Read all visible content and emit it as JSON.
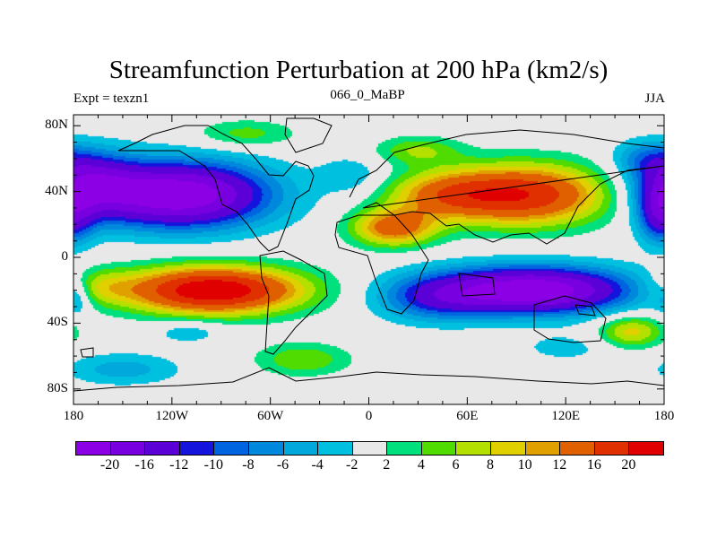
{
  "title": "Streamfunction Perturbation at 200 hPa (km2/s)",
  "left_string": "Expt = texzn1",
  "center_string": "066_0_MaBP",
  "right_string": "JJA",
  "chart_data": {
    "type": "heatmap",
    "subtype": "filled-contour-map",
    "title": "Streamfunction Perturbation at 200 hPa (km2/s)",
    "x_ticks": [
      "180",
      "120W",
      "60W",
      "0",
      "60E",
      "120E",
      "180"
    ],
    "x_tick_values": [
      -180,
      -120,
      -60,
      0,
      60,
      120,
      180
    ],
    "y_ticks": [
      "80N",
      "40N",
      "0",
      "40S",
      "80S"
    ],
    "y_tick_values": [
      80,
      40,
      0,
      -40,
      -80
    ],
    "xlim": [
      -180,
      180
    ],
    "ylim": [
      -90,
      87
    ],
    "levels": [
      -20,
      -16,
      -12,
      -10,
      -8,
      -6,
      -4,
      -2,
      2,
      4,
      6,
      8,
      10,
      12,
      16,
      20
    ],
    "level_labels": [
      "-20",
      "-16",
      "-12",
      "-10",
      "-8",
      "-6",
      "-4",
      "-2",
      "2",
      "4",
      "6",
      "8",
      "10",
      "12",
      "16",
      "20"
    ],
    "colors": [
      "#8c00e6",
      "#7800e0",
      "#5c00d8",
      "#1414dc",
      "#0064e0",
      "#0088dc",
      "#00a8dc",
      "#00c0e0",
      "#e8e8e8",
      "#00e07c",
      "#50dc00",
      "#b4e000",
      "#e0d000",
      "#e0a000",
      "#e06000",
      "#e03000",
      "#e00000"
    ],
    "anomaly_centers": [
      {
        "lon": -115,
        "lat": 38,
        "value": -24,
        "slon": 38,
        "slat": 14
      },
      {
        "lon": -170,
        "lat": 45,
        "value": -14,
        "slon": 20,
        "slat": 13
      },
      {
        "lon": 178,
        "lat": 25,
        "value": -12,
        "slon": 10,
        "slat": 12
      },
      {
        "lon": 170,
        "lat": 60,
        "value": -6,
        "slon": 15,
        "slat": 8
      },
      {
        "lon": -10,
        "lat": 50,
        "value": -4,
        "slon": 14,
        "slat": 8
      },
      {
        "lon": -75,
        "lat": 75,
        "value": 5,
        "slon": 22,
        "slat": 6
      },
      {
        "lon": 95,
        "lat": 38,
        "value": 19,
        "slon": 35,
        "slat": 13
      },
      {
        "lon": 45,
        "lat": 38,
        "value": 10,
        "slon": 25,
        "slat": 10
      },
      {
        "lon": 15,
        "lat": 18,
        "value": 14,
        "slon": 18,
        "slat": 8
      },
      {
        "lon": 30,
        "lat": 65,
        "value": 6,
        "slon": 18,
        "slat": 6
      },
      {
        "lon": -95,
        "lat": -20,
        "value": 24,
        "slon": 38,
        "slat": 10
      },
      {
        "lon": -165,
        "lat": -18,
        "value": 6,
        "slon": 15,
        "slat": 8
      },
      {
        "lon": -178,
        "lat": -25,
        "value": -5,
        "slon": 6,
        "slat": 8
      },
      {
        "lon": 100,
        "lat": -20,
        "value": -24,
        "slon": 42,
        "slat": 10
      },
      {
        "lon": 40,
        "lat": -25,
        "value": -8,
        "slon": 25,
        "slat": 10
      },
      {
        "lon": 160,
        "lat": -45,
        "value": 9,
        "slon": 14,
        "slat": 7
      },
      {
        "lon": -40,
        "lat": -62,
        "value": 6,
        "slon": 20,
        "slat": 7
      },
      {
        "lon": -150,
        "lat": -68,
        "value": -5,
        "slon": 25,
        "slat": 7
      },
      {
        "lon": -110,
        "lat": -45,
        "value": -4,
        "slon": 15,
        "slat": 5
      },
      {
        "lon": 120,
        "lat": -55,
        "value": -3,
        "slon": 20,
        "slat": 6
      }
    ]
  }
}
